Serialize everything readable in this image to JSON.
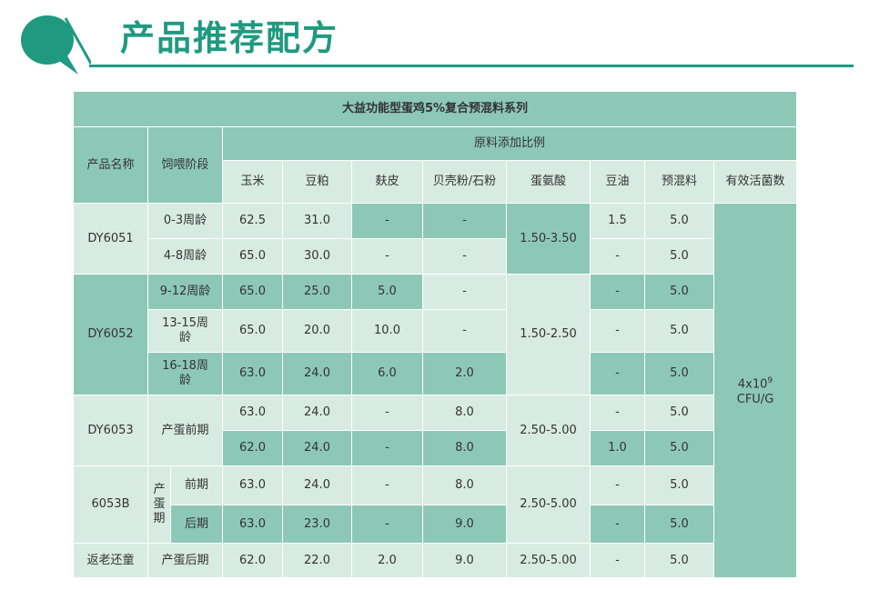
{
  "page_title": "产品推荐配方",
  "table": {
    "banner": "大益功能型蛋鸡5%复合预混料系列",
    "headers": {
      "product_name": "产品名称",
      "feeding_stage": "饲喂阶段",
      "ratio_group": "原料添加比例",
      "corn": "玉米",
      "soybean_meal": "豆粕",
      "bran": "麸皮",
      "shell_powder": "贝壳粉/石粉",
      "methionine": "蛋氨酸",
      "soy_oil": "豆油",
      "premix": "预混料",
      "live_bacteria": "有效活菌数"
    },
    "groups": [
      {
        "name": "DY6051",
        "methionine": "1.50-3.50"
      },
      {
        "name": "DY6052",
        "methionine": "1.50-2.50"
      },
      {
        "name": "DY6053",
        "stage": "产蛋前期",
        "methionine": "2.50-5.00"
      },
      {
        "name": "6053B",
        "stage": "产蛋期",
        "methionine": "2.50-5.00"
      },
      {
        "name": "返老还童",
        "stage": "产蛋后期",
        "methionine": "2.50-5.00"
      }
    ],
    "rows": [
      {
        "stage": "0-3周龄",
        "corn": "62.5",
        "soy": "31.0",
        "bran": "-",
        "shell": "-",
        "oil": "1.5",
        "premix": "5.0"
      },
      {
        "stage": "4-8周龄",
        "corn": "65.0",
        "soy": "30.0",
        "bran": "-",
        "shell": "-",
        "oil": "-",
        "premix": "5.0"
      },
      {
        "stage": "9-12周龄",
        "corn": "65.0",
        "soy": "25.0",
        "bran": "5.0",
        "shell": "-",
        "oil": "-",
        "premix": "5.0"
      },
      {
        "stage": "13-15周龄",
        "corn": "65.0",
        "soy": "20.0",
        "bran": "10.0",
        "shell": "-",
        "oil": "-",
        "premix": "5.0"
      },
      {
        "stage": "16-18周龄",
        "corn": "63.0",
        "soy": "24.0",
        "bran": "6.0",
        "shell": "2.0",
        "oil": "-",
        "premix": "5.0"
      },
      {
        "corn": "63.0",
        "soy": "24.0",
        "bran": "-",
        "shell": "8.0",
        "oil": "-",
        "premix": "5.0"
      },
      {
        "corn": "62.0",
        "soy": "24.0",
        "bran": "-",
        "shell": "8.0",
        "oil": "1.0",
        "premix": "5.0"
      },
      {
        "substage": "前期",
        "corn": "63.0",
        "soy": "24.0",
        "bran": "-",
        "shell": "8.0",
        "oil": "-",
        "premix": "5.0"
      },
      {
        "substage": "后期",
        "corn": "63.0",
        "soy": "23.0",
        "bran": "-",
        "shell": "9.0",
        "oil": "-",
        "premix": "5.0"
      },
      {
        "corn": "62.0",
        "soy": "22.0",
        "bran": "2.0",
        "shell": "9.0",
        "oil": "-",
        "premix": "5.0"
      }
    ],
    "bacteria": {
      "base": "4x10",
      "exp": "9",
      "unit": "CFU/G"
    }
  },
  "colors": {
    "accent": "#1f9a80",
    "dark_cell": "#8dc8b6",
    "light_cell": "#d7ebe3"
  }
}
